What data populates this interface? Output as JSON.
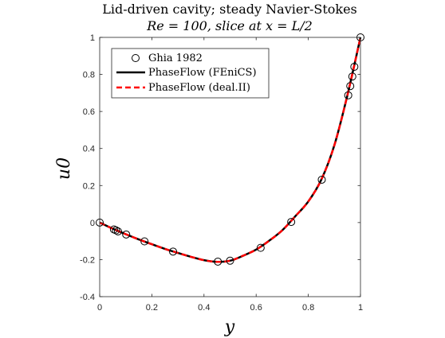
{
  "chart_data": {
    "type": "line",
    "title_lines": [
      "Lid-driven cavity; steady Navier-Stokes",
      "Re = 100, slice at x = L/2"
    ],
    "xlabel": "y",
    "ylabel": "u0",
    "xlim": [
      0,
      1
    ],
    "ylim": [
      -0.4,
      1
    ],
    "x_ticks": [
      0,
      0.2,
      0.4,
      0.6,
      0.8,
      1
    ],
    "x_tick_labels": [
      "0",
      "0.2",
      "0.4",
      "0.6",
      "0.8",
      "1"
    ],
    "y_ticks": [
      -0.4,
      -0.2,
      0,
      0.2,
      0.4,
      0.6,
      0.8,
      1
    ],
    "y_tick_labels": [
      "-0.4",
      "-0.2",
      "0",
      "0.2",
      "0.4",
      "0.6",
      "0.8",
      "1"
    ],
    "grid": false,
    "legend_position": "top-left",
    "series": [
      {
        "name": "Ghia 1982",
        "style": "markers-circle",
        "color": "#000000",
        "x": [
          0,
          0.0547,
          0.0625,
          0.0703,
          0.1016,
          0.1719,
          0.2813,
          0.4531,
          0.5,
          0.6172,
          0.7344,
          0.8516,
          0.9531,
          0.9609,
          0.9688,
          0.9766,
          1
        ],
        "y": [
          0,
          -0.03717,
          -0.04192,
          -0.04775,
          -0.06434,
          -0.1015,
          -0.15662,
          -0.2109,
          -0.20581,
          -0.13641,
          0.00332,
          0.23151,
          0.68717,
          0.73722,
          0.78871,
          0.84123,
          1
        ]
      },
      {
        "name": "PhaseFlow (FEniCS)",
        "style": "solid",
        "color": "#000000",
        "x": [
          0,
          0.05,
          0.1,
          0.15,
          0.2,
          0.25,
          0.3,
          0.35,
          0.4,
          0.45,
          0.5,
          0.55,
          0.6,
          0.65,
          0.7,
          0.75,
          0.8,
          0.85,
          0.9,
          0.95,
          1
        ],
        "y": [
          0,
          -0.033,
          -0.063,
          -0.091,
          -0.117,
          -0.142,
          -0.164,
          -0.185,
          -0.203,
          -0.212,
          -0.206,
          -0.179,
          -0.146,
          -0.098,
          -0.042,
          0.034,
          0.114,
          0.232,
          0.418,
          0.688,
          1
        ]
      },
      {
        "name": "PhaseFlow (deal.II)",
        "style": "dashed",
        "color": "#ff0000",
        "x": [
          0,
          0.05,
          0.1,
          0.15,
          0.2,
          0.25,
          0.3,
          0.35,
          0.4,
          0.45,
          0.5,
          0.55,
          0.6,
          0.65,
          0.7,
          0.75,
          0.8,
          0.85,
          0.9,
          0.95,
          1
        ],
        "y": [
          0,
          -0.033,
          -0.063,
          -0.091,
          -0.117,
          -0.142,
          -0.164,
          -0.185,
          -0.203,
          -0.212,
          -0.206,
          -0.179,
          -0.146,
          -0.098,
          -0.042,
          0.034,
          0.114,
          0.232,
          0.418,
          0.688,
          1
        ]
      }
    ]
  }
}
